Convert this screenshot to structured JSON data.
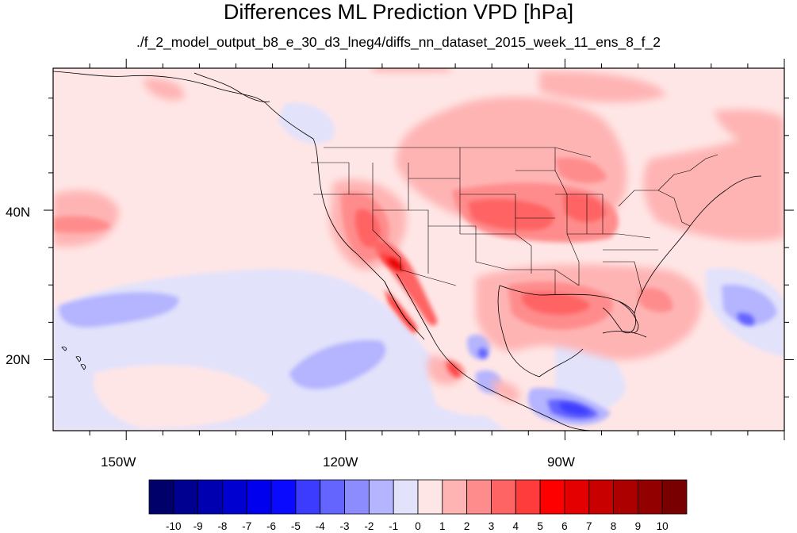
{
  "title": "Differences ML Prediction VPD [hPa]",
  "subtitle": "./f_2_model_output_b8_e_30_d3_lneg4/diffs_nn_dataset_2015_week_11_ens_8_f_2",
  "axes": {
    "x_ticks": [
      {
        "label": "150W",
        "lon": -150
      },
      {
        "label": "120W",
        "lon": -120
      },
      {
        "label": "90W",
        "lon": -90
      }
    ],
    "y_ticks": [
      {
        "label": "40N",
        "lat": 40
      },
      {
        "label": "20N",
        "lat": 20
      }
    ],
    "lon_range": [
      -160,
      -60
    ],
    "lat_range": [
      10.5,
      59
    ]
  },
  "colorbar": {
    "labels": [
      "-10",
      "-9",
      "-8",
      "-7",
      "-6",
      "-5",
      "-4",
      "-3",
      "-2",
      "-1",
      "0",
      "1",
      "2",
      "3",
      "4",
      "5",
      "6",
      "7",
      "8",
      "9",
      "10"
    ],
    "colors": [
      "#00006b",
      "#000090",
      "#0000b0",
      "#0000d0",
      "#0000ee",
      "#0a0aff",
      "#3c3cff",
      "#6464ff",
      "#8c8cff",
      "#b4b4ff",
      "#e2e2fb",
      "#ffe6e6",
      "#ffb4b4",
      "#ff8c8c",
      "#ff6464",
      "#ff3c3c",
      "#ff0000",
      "#e40000",
      "#c80000",
      "#ac0000",
      "#920000",
      "#780000"
    ]
  },
  "colors": {
    "background_field": "#ffe6e6",
    "coast_lines": "#000000"
  }
}
